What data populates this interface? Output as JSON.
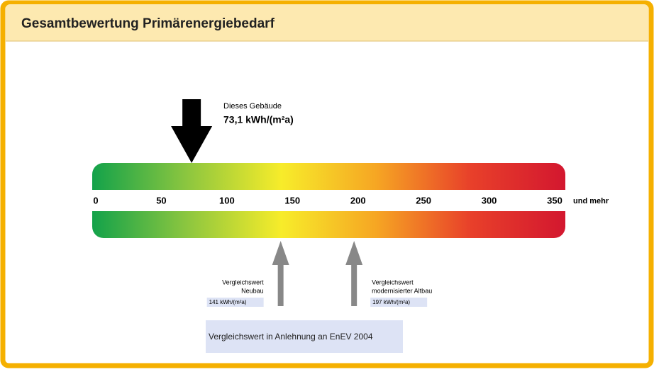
{
  "chart_data": {
    "type": "scale",
    "title": "Gesamtbewertung Primärenergiebedarf",
    "xlim": [
      0,
      350
    ],
    "xticks": [
      0,
      50,
      100,
      150,
      200,
      250,
      300,
      350
    ],
    "axis_end_label": "und mehr",
    "colors": [
      "#13a24a",
      "#8cc63f",
      "#f7ec2a",
      "#f6a623",
      "#e8402a",
      "#d3172f"
    ],
    "building": {
      "label": "Dieses Gebäude",
      "value": 73.1,
      "value_label": "73,1 kWh/(m²a)"
    },
    "references": [
      {
        "label_lines": [
          "Vergleichswert",
          "Neubau"
        ],
        "value": 141,
        "value_label": "141 kWh/(m²a)"
      },
      {
        "label_lines": [
          "Vergleichswert",
          "modernisierter Altbau"
        ],
        "value": 197,
        "value_label": "197 kWh/(m²a)"
      }
    ],
    "footnote": "Vergleichswert in Anlehnung an EnEV 2004"
  }
}
